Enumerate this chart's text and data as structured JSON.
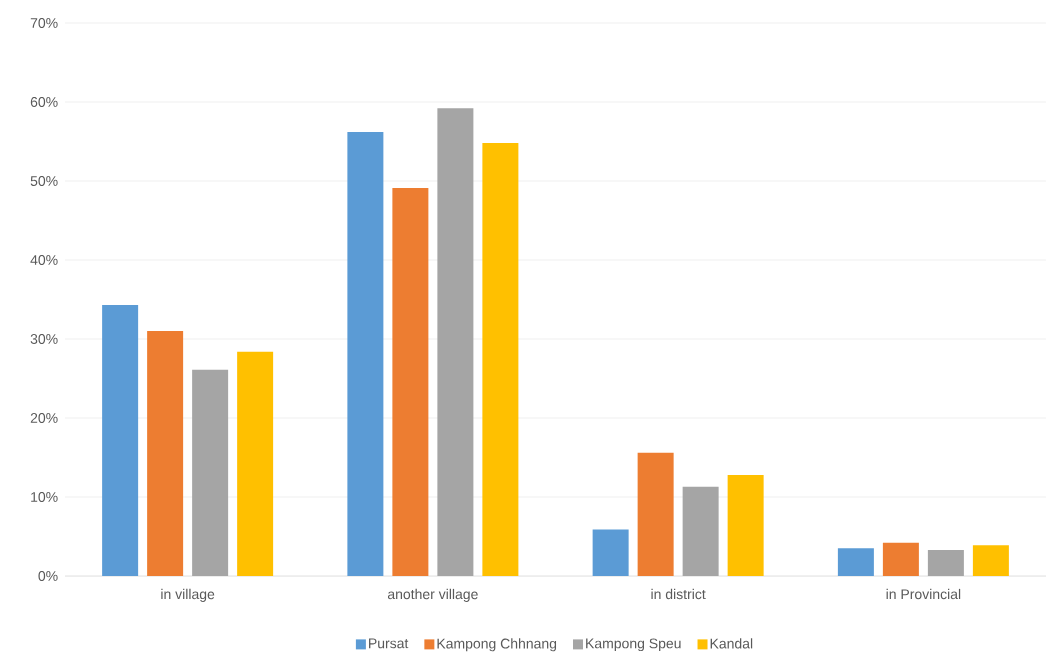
{
  "chart_data": {
    "type": "bar",
    "categories": [
      "in village",
      "another village",
      "in district",
      "in Provincial"
    ],
    "series": [
      {
        "name": "Pursat",
        "color": "#5b9bd5",
        "values": [
          34.3,
          56.2,
          5.9,
          3.5
        ]
      },
      {
        "name": "Kampong Chhnang",
        "color": "#ed7d31",
        "values": [
          31.0,
          49.1,
          15.6,
          4.2
        ]
      },
      {
        "name": "Kampong Speu",
        "color": "#a5a5a5",
        "values": [
          26.1,
          59.2,
          11.3,
          3.3
        ]
      },
      {
        "name": "Kandal",
        "color": "#ffc000",
        "values": [
          28.4,
          54.8,
          12.8,
          3.9
        ]
      }
    ],
    "ylim": [
      0,
      70
    ],
    "yticks": [
      {
        "value": 0,
        "label": "0%"
      },
      {
        "value": 10,
        "label": "10%"
      },
      {
        "value": 20,
        "label": "20%"
      },
      {
        "value": 30,
        "label": "30%"
      },
      {
        "value": 40,
        "label": "40%"
      },
      {
        "value": 50,
        "label": "50%"
      },
      {
        "value": 60,
        "label": "60%"
      },
      {
        "value": 70,
        "label": "70%"
      }
    ],
    "grid": "y",
    "legend": "bottom"
  }
}
